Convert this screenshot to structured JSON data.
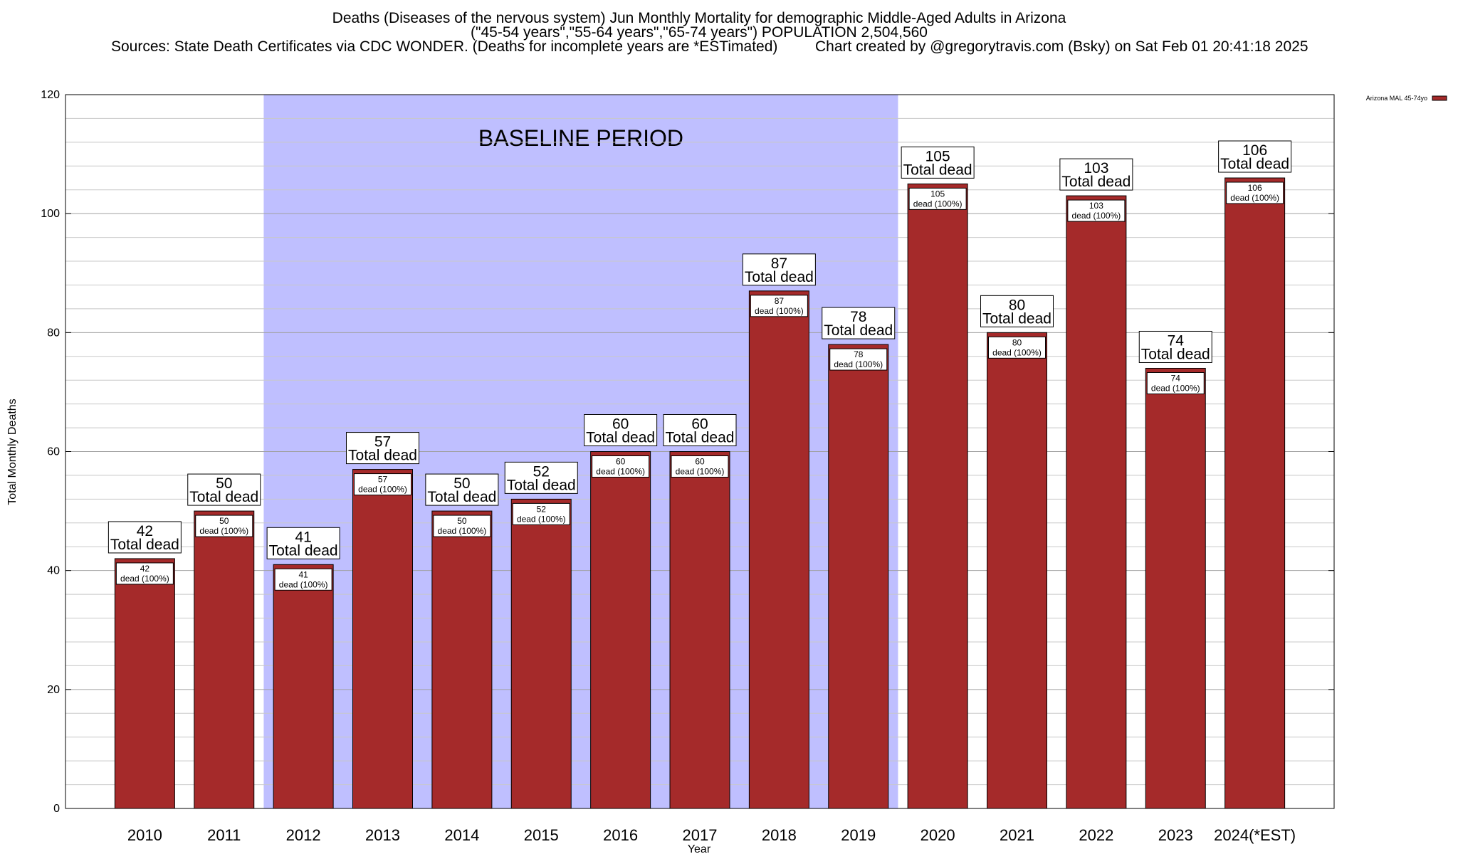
{
  "chart_data": {
    "type": "bar",
    "title_lines": [
      "Deaths (Diseases of the nervous system) Jun Monthly Mortality for demographic Middle-Aged Adults in Arizona",
      "(\"45-54 years\",\"55-64 years\",\"65-74 years\") POPULATION 2,504,560"
    ],
    "sources": "Sources: State Death Certificates via CDC WONDER. (Deaths for incomplete years are *ESTimated)",
    "credit": "Chart created by @gregorytravis.com (Bsky) on Sat Feb 01 20:41:18 2025",
    "categories": [
      "2010",
      "2011",
      "2012",
      "2013",
      "2014",
      "2015",
      "2016",
      "2017",
      "2018",
      "2019",
      "2020",
      "2021",
      "2022",
      "2023",
      "2024(*EST)"
    ],
    "values": [
      42,
      50,
      41,
      57,
      50,
      52,
      60,
      60,
      87,
      78,
      105,
      80,
      103,
      74,
      106
    ],
    "series": [
      {
        "name": "Arizona MAL 45-74yo",
        "values": [
          42,
          50,
          41,
          57,
          50,
          52,
          60,
          60,
          87,
          78,
          105,
          80,
          103,
          74,
          106
        ],
        "color": "#a52a2a"
      }
    ],
    "top_label_suffix": "Total dead",
    "inner_label_suffix": "dead (100%)",
    "xlabel": "Year",
    "ylabel": "Total Monthly Deaths",
    "ylim": [
      0,
      120
    ],
    "yticks": [
      0,
      20,
      40,
      60,
      80,
      100,
      120
    ],
    "minor_grid_step": 4,
    "baseline": {
      "label": "BASELINE PERIOD",
      "from": "2012",
      "to": "2019",
      "color": "#bfbfff"
    },
    "legend_position": "top-right",
    "bar_color": "#a52a2a",
    "grid": true
  }
}
